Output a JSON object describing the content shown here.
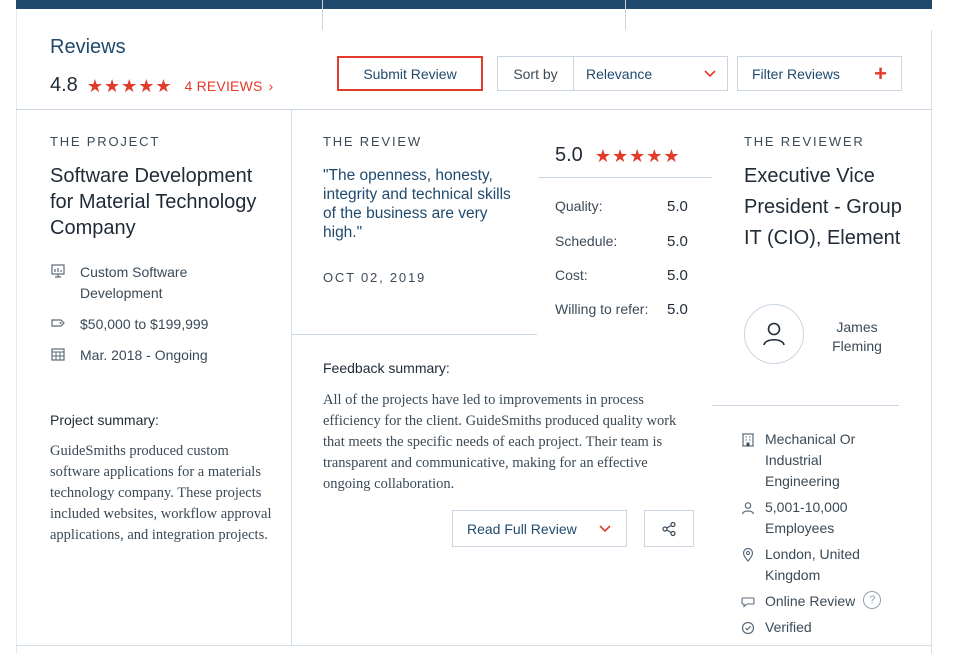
{
  "header": {
    "title": "Reviews",
    "rating": "4.8",
    "stars": "★★★★★",
    "reviews_link": "4 REVIEWS",
    "reviews_chevron": "›",
    "submit_label": "Submit Review",
    "sort_label": "Sort by",
    "sort_value": "Relevance",
    "filter_label": "Filter Reviews",
    "filter_icon": "+"
  },
  "project": {
    "section_label": "THE PROJECT",
    "title": "Software Development for Material Technology Company",
    "service": "Custom Software Development",
    "budget": "$50,000 to $199,999",
    "dates": "Mar. 2018 - Ongoing",
    "summary_heading": "Project summary:",
    "summary": "GuideSmiths produced custom software applications for a materials technology company. These projects included websites, workflow approval applications, and integration projects."
  },
  "review": {
    "section_label": "THE REVIEW",
    "quote": "\"The openness, honesty, integrity and technical skills of the business are very high.\"",
    "date": "OCT 02, 2019",
    "overall": "5.0",
    "stars": "★★★★★",
    "scores": [
      {
        "label": "Quality:",
        "value": "5.0"
      },
      {
        "label": "Schedule:",
        "value": "5.0"
      },
      {
        "label": "Cost:",
        "value": "5.0"
      },
      {
        "label": "Willing to refer:",
        "value": "5.0"
      }
    ],
    "feedback_heading": "Feedback summary:",
    "feedback": "All of the projects have led to improvements in process efficiency for the client. GuideSmiths produced quality work that meets the specific needs of each project. Their team is transparent and communicative, making for an effective ongoing collaboration.",
    "read_full_label": "Read Full Review"
  },
  "reviewer": {
    "section_label": "THE REVIEWER",
    "title": "Executive Vice President - Group IT (CIO), Element",
    "name": "James Fleming",
    "industry": "Mechanical Or Industrial Engineering",
    "size": "5,001-10,000 Employees",
    "location": "London, United Kingdom",
    "review_type": "Online Review",
    "help": "?",
    "verified": "Verified"
  },
  "colors": {
    "accent": "#e23b2a",
    "navy": "#1f4a6e",
    "border": "#c9d6e1"
  }
}
